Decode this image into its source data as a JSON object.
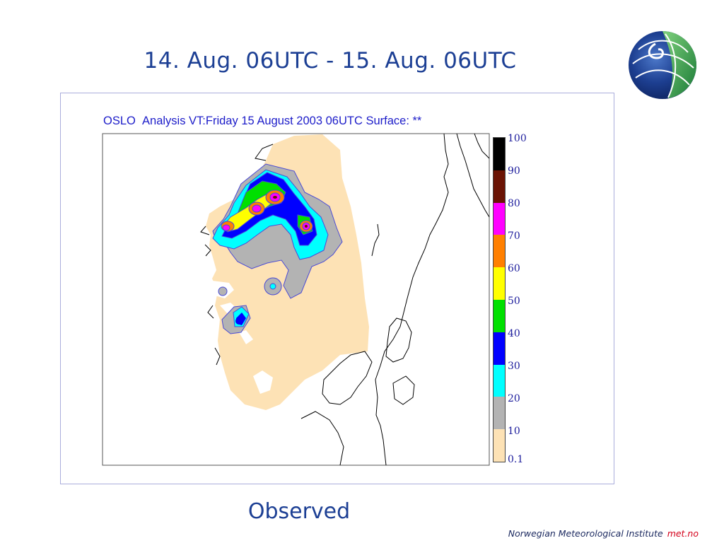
{
  "slide": {
    "title": "14. Aug. 06UTC - 15. Aug. 06UTC",
    "caption": "Observed"
  },
  "map": {
    "header_station": "OSLO",
    "header_text": "Analysis VT:Friday 15 August 2003 06UTC Surface",
    "header_suffix": ": **",
    "land_color": "#fde2b5",
    "coast_color": "#000000"
  },
  "colorbar": {
    "labels": [
      "100",
      "90",
      "80",
      "70",
      "60",
      "50",
      "40",
      "30",
      "20",
      "10",
      "0.1"
    ],
    "colors": [
      "#000000",
      "#6b1304",
      "#ff00ff",
      "#ff7f00",
      "#ffff00",
      "#00e000",
      "#0000ff",
      "#00ffff",
      "#b3b3b3",
      "#fde2b5"
    ]
  },
  "footer": {
    "institute": "Norwegian Meteorological Institute",
    "site": "met.no"
  },
  "logo": {
    "icon": "met-no-globe-logo",
    "colors": [
      "#1d3f91",
      "#2c9a4a"
    ]
  }
}
